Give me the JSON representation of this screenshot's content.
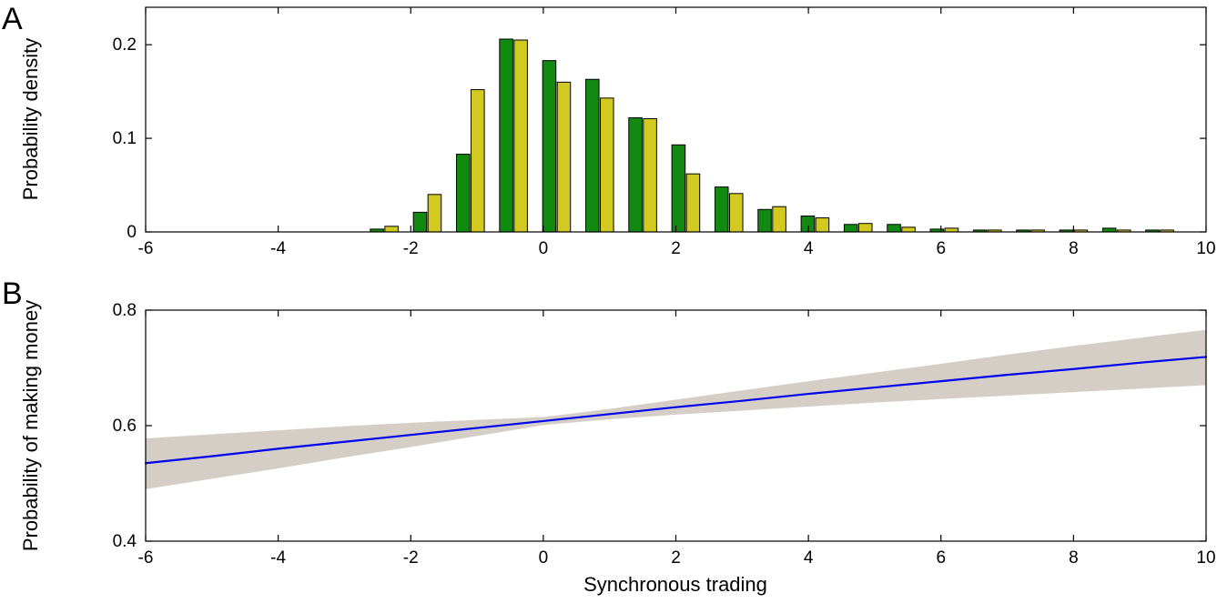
{
  "figure": {
    "panel_a_label": "A",
    "panel_b_label": "B",
    "background": "#ffffff"
  },
  "chart_data": [
    {
      "id": "panel-a",
      "type": "bar",
      "title": "",
      "xlabel": "",
      "ylabel": "Probability density",
      "xlim": [
        -6,
        10
      ],
      "ylim": [
        0,
        0.24
      ],
      "grid": false,
      "legend": "none",
      "x_ticks": [
        [
          -6,
          "-6"
        ],
        [
          -4,
          "-4"
        ],
        [
          -2,
          "-2"
        ],
        [
          0,
          "0"
        ],
        [
          2,
          "2"
        ],
        [
          4,
          "4"
        ],
        [
          6,
          "6"
        ],
        [
          8,
          "8"
        ],
        [
          10,
          "10"
        ]
      ],
      "y_ticks": [
        [
          0,
          "0"
        ],
        [
          0.1,
          "0.1"
        ],
        [
          0.2,
          "0.2"
        ]
      ],
      "bin_centers": [
        -2.4,
        -1.75,
        -1.1,
        -0.45,
        0.2,
        0.85,
        1.5,
        2.15,
        2.8,
        3.45,
        4.1,
        4.75,
        5.4,
        6.05,
        6.7,
        7.35,
        8.0,
        8.65,
        9.3
      ],
      "bar_width": 0.2,
      "bar_offset": 0.11,
      "bar_edge_color": "#000000",
      "series": [
        {
          "name": "green-series",
          "color": "#128a12",
          "values": [
            0.003,
            0.021,
            0.083,
            0.206,
            0.183,
            0.163,
            0.122,
            0.093,
            0.048,
            0.024,
            0.017,
            0.008,
            0.008,
            0.003,
            0.002,
            0.002,
            0.002,
            0.004,
            0.002
          ]
        },
        {
          "name": "yellow-series",
          "color": "#d3ca21",
          "values": [
            0.006,
            0.04,
            0.152,
            0.205,
            0.16,
            0.143,
            0.121,
            0.062,
            0.041,
            0.027,
            0.015,
            0.009,
            0.005,
            0.004,
            0.002,
            0.002,
            0.002,
            0.002,
            0.002
          ]
        }
      ]
    },
    {
      "id": "panel-b",
      "type": "line",
      "title": "",
      "xlabel": "Synchronous trading",
      "ylabel": "Probability of making money",
      "xlim": [
        -6,
        10
      ],
      "ylim": [
        0.4,
        0.8
      ],
      "grid": false,
      "legend": "none",
      "x_ticks": [
        [
          -6,
          "-6"
        ],
        [
          -4,
          "-4"
        ],
        [
          -2,
          "-2"
        ],
        [
          0,
          "0"
        ],
        [
          2,
          "2"
        ],
        [
          4,
          "4"
        ],
        [
          6,
          "6"
        ],
        [
          8,
          "8"
        ],
        [
          10,
          "10"
        ]
      ],
      "y_ticks": [
        [
          0.4,
          "0.4"
        ],
        [
          0.6,
          "0.6"
        ],
        [
          0.8,
          "0.8"
        ]
      ],
      "x": [
        -6,
        -5,
        -4,
        -3,
        -2,
        -1,
        0,
        1,
        2,
        3,
        4,
        5,
        6,
        7,
        8,
        9,
        10
      ],
      "line": {
        "name": "fit-line",
        "color": "#0000ee",
        "values": [
          0.535,
          0.547,
          0.56,
          0.572,
          0.584,
          0.596,
          0.608,
          0.62,
          0.632,
          0.643,
          0.655,
          0.666,
          0.677,
          0.688,
          0.698,
          0.709,
          0.719
        ]
      },
      "band": {
        "name": "confidence-band",
        "color": "#d4cec6",
        "lower": [
          0.49,
          0.508,
          0.526,
          0.545,
          0.563,
          0.582,
          0.601,
          0.611,
          0.619,
          0.626,
          0.633,
          0.64,
          0.646,
          0.652,
          0.658,
          0.664,
          0.67
        ],
        "upper": [
          0.578,
          0.585,
          0.592,
          0.599,
          0.605,
          0.61,
          0.615,
          0.629,
          0.645,
          0.661,
          0.677,
          0.692,
          0.707,
          0.723,
          0.738,
          0.752,
          0.766
        ]
      }
    }
  ]
}
